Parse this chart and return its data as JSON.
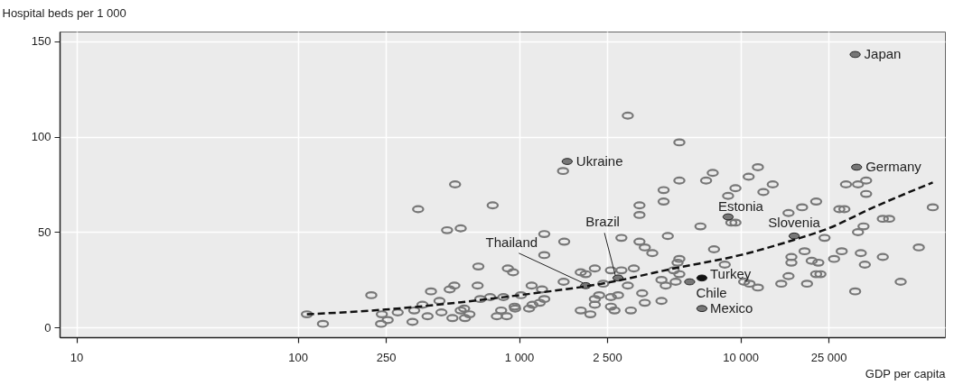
{
  "chart_data": {
    "type": "scatter",
    "xlabel": "GDP per capita",
    "ylabel": "Hospital beds per 1 000",
    "log": "x",
    "grid": true,
    "xlim": [
      8.4,
      84000
    ],
    "ylim": [
      -5,
      155
    ],
    "xticks": [
      10,
      100,
      250,
      {
        "value": 1000,
        "label": "1 000"
      },
      {
        "value": 2500,
        "label": "2 500"
      },
      {
        "value": 10000,
        "label": "10 000"
      },
      {
        "value": 25000,
        "label": "25 000"
      }
    ],
    "yticks": [
      0,
      50,
      100,
      150
    ],
    "series": [
      {
        "color": "#777777",
        "marker": "circle",
        "x": [
          110,
          130,
          215,
          240,
          238,
          255,
          283,
          330,
          336,
          350,
          366,
          386,
          400,
          437,
          446,
          473,
          486,
          510,
          500,
          514,
          545,
          545,
          565,
          570,
          597,
          655,
          650,
          668,
          740,
          760,
          794,
          830,
          880,
          850,
          890,
          940,
          955,
          960,
          1020,
          1110,
          1150,
          1140,
          1240,
          1270,
          1300,
          1300,
          1300,
          1580,
          1600,
          1590,
          3100,
          5300,
          7500,
          7000,
          5300,
          12000,
          10900,
          9500,
          12700,
          4500,
          4500,
          3500,
          3500,
          8800,
          9100,
          9500,
          6600,
          2900,
          4700,
          3500,
          3700,
          4000,
          7600,
          5300,
          5200,
          8500,
          1900,
          2000,
          2200,
          2600,
          2900,
          3300,
          2400,
          3100,
          4400,
          4600,
          5000,
          5100,
          5300,
          10400,
          11000,
          12000,
          2300,
          2200,
          2200,
          2600,
          2800,
          2600,
          2700,
          3200,
          1900,
          2100,
          3600,
          3700,
          4400,
          14000,
          19000,
          22000,
          16500,
          30000,
          34000,
          37000,
          37000,
          28000,
          29500,
          44000,
          47000,
          74000,
          36000,
          34000,
          24000,
          19500,
          17000,
          17000,
          21000,
          22500,
          22000,
          23000,
          16500,
          15300,
          20000,
          26500,
          28700,
          35000,
          36500,
          44000,
          64000,
          53000,
          33000
        ],
        "values": [
          7,
          2,
          17,
          7,
          2,
          4,
          8,
          3,
          9,
          62,
          12,
          6,
          19,
          14,
          8,
          51,
          20,
          22,
          5,
          75,
          52,
          9,
          10,
          5,
          7,
          32,
          22,
          15,
          16,
          64,
          6,
          9,
          6,
          16,
          31,
          29,
          11,
          10,
          17,
          10,
          12,
          22,
          13,
          20,
          15,
          49,
          38,
          82,
          45,
          24,
          111,
          97,
          81,
          77,
          77,
          84,
          79,
          73,
          71,
          72,
          66,
          64,
          59,
          69,
          55,
          55,
          53,
          47,
          48,
          45,
          42,
          39,
          41,
          36,
          34,
          33,
          29,
          28,
          31,
          30,
          30,
          31,
          23,
          22,
          25,
          22,
          30,
          24,
          28,
          24,
          23,
          21,
          17,
          15,
          12,
          16,
          17,
          11,
          9,
          9,
          9,
          7,
          18,
          13,
          14,
          75,
          63,
          66,
          60,
          75,
          75,
          77,
          70,
          62,
          62,
          57,
          57,
          63,
          53,
          50,
          47,
          40,
          37,
          34,
          35,
          34,
          28,
          28,
          27,
          23,
          23,
          36,
          40,
          39,
          33,
          37,
          42,
          24,
          19
        ]
      },
      {
        "type": "scatter",
        "marker": "circle",
        "x": [
          33000,
          33500,
          1650,
          8800,
          17500,
          2800,
          2000,
          6700,
          5900,
          6700
        ],
        "values": [
          143,
          84,
          87,
          58,
          48,
          26,
          22,
          26,
          24,
          10
        ],
        "colors": [
          "#777777",
          "#777777",
          "#777777",
          "#777777",
          "#777777",
          "#777777",
          "#777777",
          "#111111",
          "#777777",
          "#777777"
        ]
      },
      {
        "type": "line",
        "color": "#111111",
        "line_style": "dashed",
        "marker": "none",
        "x": [
          110,
          250,
          1000,
          2500,
          5000,
          10000,
          17500,
          25000,
          40000,
          74000
        ],
        "values": [
          7,
          9.5,
          17,
          23.5,
          31,
          38,
          46,
          52,
          63,
          76
        ]
      }
    ],
    "annotations": [
      {
        "text": "Japan",
        "x": 33000,
        "y": 143
      },
      {
        "text": "Germany",
        "x": 33500,
        "y": 84
      },
      {
        "text": "Ukraine",
        "x": 1650,
        "y": 87
      },
      {
        "text": "Estonia",
        "x": 8800,
        "y": 58
      },
      {
        "text": "Slovenia",
        "x": 17500,
        "y": 48
      },
      {
        "text": "Brazil",
        "x": 2800,
        "y": 26
      },
      {
        "text": "Thailand",
        "x": 2000,
        "y": 22
      },
      {
        "text": "Turkey",
        "x": 6700,
        "y": 26
      },
      {
        "text": "Chile",
        "x": 5900,
        "y": 24
      },
      {
        "text": "Mexico",
        "x": 6700,
        "y": 10
      }
    ]
  }
}
